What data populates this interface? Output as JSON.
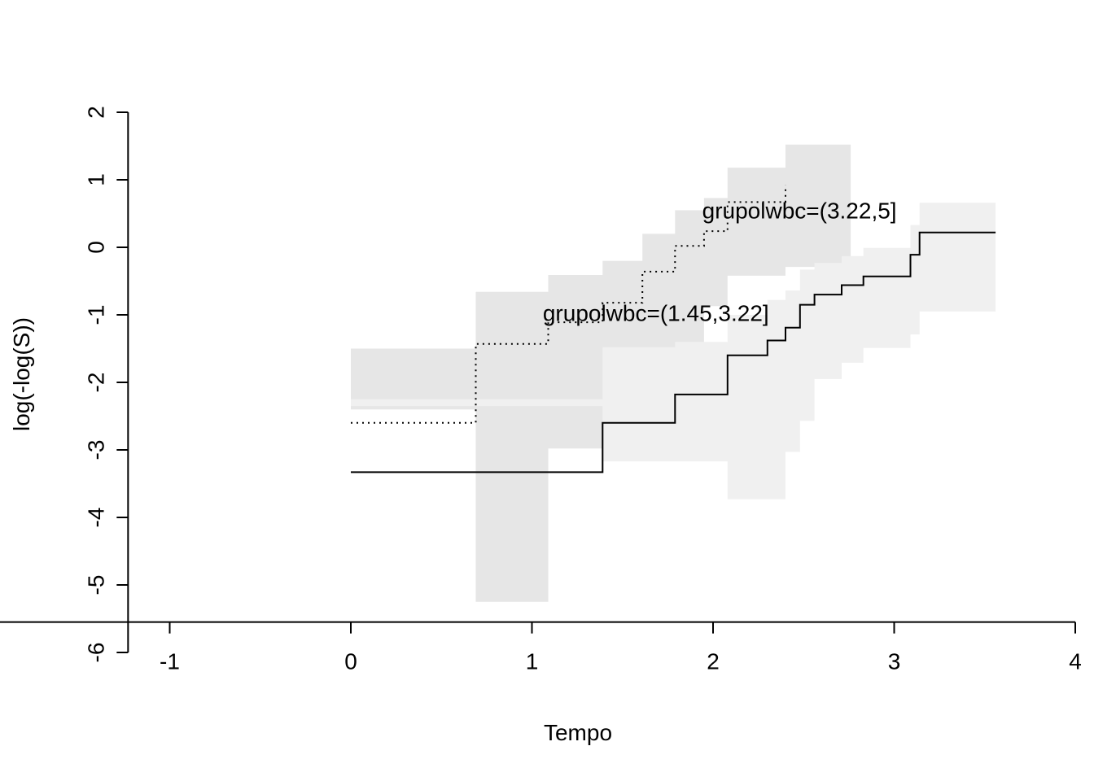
{
  "chart_data": {
    "type": "line",
    "step": true,
    "xlabel": "Tempo",
    "ylabel": "log(-log(S))",
    "xlim": [
      -1.25,
      4
    ],
    "ylim": [
      -6,
      2
    ],
    "xticks": [
      -1,
      0,
      1,
      2,
      3,
      4
    ],
    "yticks": [
      -6,
      -5,
      -4,
      -3,
      -2,
      -1,
      0,
      1,
      2
    ],
    "grid": false,
    "legend": "none",
    "colors": {
      "line": "#000000",
      "band_group_high": "#e6e6e6",
      "band_group_low": "#f0f0f0"
    },
    "series": [
      {
        "name": "grupolwbc=(3.22,5]",
        "line_style": "dotted",
        "x": [
          0.0,
          0.69,
          1.09,
          1.39,
          1.61,
          1.79,
          1.95,
          2.08,
          2.4
        ],
        "y": [
          -2.6,
          -1.43,
          -1.11,
          -0.82,
          -0.36,
          0.02,
          0.24,
          0.67,
          0.92
        ]
      },
      {
        "name": "grupolwbc=(1.45,3.22]",
        "line_style": "solid",
        "x": [
          0.0,
          1.39,
          1.79,
          2.08,
          2.3,
          2.4,
          2.48,
          2.56,
          2.71,
          2.83,
          3.09,
          3.14,
          3.56
        ],
        "y": [
          -3.33,
          -2.6,
          -2.18,
          -1.6,
          -1.38,
          -1.19,
          -0.85,
          -0.7,
          -0.56,
          -0.43,
          -0.11,
          0.22,
          0.22
        ]
      }
    ],
    "bands": [
      {
        "series": "grupolwbc=(3.22,5]",
        "x": [
          0.0,
          0.69,
          1.09,
          1.39,
          1.61,
          1.79,
          1.95,
          2.08,
          2.4,
          2.76
        ],
        "upper": [
          -1.5,
          -0.66,
          -0.41,
          -0.2,
          0.2,
          0.55,
          0.73,
          1.18,
          1.52,
          1.52
        ],
        "lower": [
          -2.4,
          -5.25,
          -2.98,
          -2.98,
          -1.78,
          -1.78,
          -0.87,
          -0.42,
          -0.29,
          -0.29
        ]
      },
      {
        "series": "grupolwbc=(1.45,3.22]",
        "x": [
          0.0,
          1.39,
          1.79,
          2.08,
          2.3,
          2.4,
          2.48,
          2.56,
          2.71,
          2.83,
          3.09,
          3.14,
          3.56
        ],
        "upper": [
          -2.25,
          -1.48,
          -1.4,
          -1.0,
          -0.78,
          -0.64,
          -0.33,
          -0.23,
          -0.13,
          -0.01,
          0.33,
          0.66,
          0.66
        ],
        "lower": [
          -2.35,
          -3.17,
          -3.17,
          -3.73,
          -3.73,
          -3.03,
          -2.57,
          -1.95,
          -1.71,
          -1.49,
          -1.29,
          -0.95,
          -0.62
        ]
      }
    ],
    "annotations": [
      {
        "text": "grupolwbc=(3.22,5]",
        "x": 1.94,
        "y": 0.43
      },
      {
        "text": "grupolwbc=(1.45,3.22]",
        "x": 1.06,
        "y": -1.09
      }
    ]
  }
}
